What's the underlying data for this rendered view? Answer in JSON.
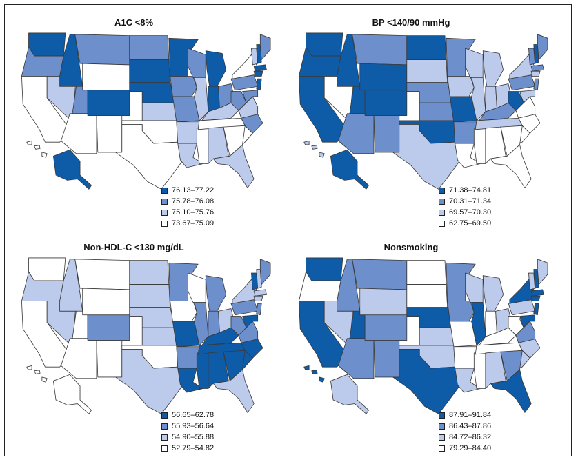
{
  "colors": {
    "c1": "#0e5ba8",
    "c2": "#6d8fcc",
    "c3": "#bccbeb",
    "c4": "#ffffff",
    "stroke": "#3a3a3a"
  },
  "panels": [
    {
      "title": "A1C <8%",
      "legend": [
        "76.13–77.22",
        "75.78–76.08",
        "75.10–75.76",
        "73.67–75.09"
      ],
      "regions": {
        "WA": 1,
        "OR": 2,
        "CA": 4,
        "NV": 3,
        "ID": 1,
        "MT": 2,
        "WY": 4,
        "UT": 2,
        "AZ": 4,
        "NM": 4,
        "CO": 1,
        "ND": 2,
        "SD": 1,
        "NE": 1,
        "KS": 3,
        "OK": 4,
        "TX": 4,
        "MN": 1,
        "IA": 2,
        "MO": 2,
        "AR": 3,
        "LA": 3,
        "WI": 2,
        "IL": 3,
        "MS": 4,
        "MI": 1,
        "IN": 1,
        "KY": 3,
        "TN": 4,
        "AL": 3,
        "OH": 2,
        "WV": 2,
        "VA": 3,
        "NC": 2,
        "SC": 4,
        "GA": 4,
        "FL": 3,
        "PA": 2,
        "NY": 4,
        "VT": 3,
        "NH": 1,
        "ME": 2,
        "MA": 1,
        "CT": 1,
        "NJ": 1,
        "MD": 2,
        "AK": 1,
        "HI": 4
      }
    },
    {
      "title": "BP <140/90 mmHg",
      "legend": [
        "71.38–74.81",
        "70.31–71.34",
        "69.57–70.30",
        "62.75–69.50"
      ],
      "regions": {
        "WA": 1,
        "OR": 1,
        "CA": 1,
        "NV": 4,
        "ID": 1,
        "MT": 2,
        "WY": 1,
        "UT": 1,
        "AZ": 2,
        "NM": 2,
        "CO": 1,
        "ND": 1,
        "SD": 3,
        "NE": 2,
        "KS": 2,
        "OK": 1,
        "TX": 3,
        "MN": 2,
        "IA": 3,
        "MO": 1,
        "AR": 2,
        "LA": 4,
        "WI": 3,
        "IL": 3,
        "MS": 4,
        "MI": 3,
        "IN": 3,
        "KY": 2,
        "TN": 3,
        "AL": 4,
        "OH": 3,
        "WV": 1,
        "VA": 4,
        "NC": 4,
        "SC": 4,
        "GA": 4,
        "FL": 4,
        "PA": 2,
        "NY": 3,
        "VT": 2,
        "NH": 1,
        "ME": 2,
        "MA": 2,
        "CT": 3,
        "NJ": 2,
        "MD": 3,
        "AK": 1,
        "HI": 3
      }
    },
    {
      "title": "Non-HDL-C <130 mg/dL",
      "legend": [
        "56.65–62.78",
        "55.93–56.64",
        "54.90–55.88",
        "52.79–54.82"
      ],
      "regions": {
        "WA": 4,
        "OR": 3,
        "CA": 4,
        "NV": 3,
        "ID": 3,
        "MT": 4,
        "WY": 4,
        "UT": 4,
        "AZ": 4,
        "NM": 4,
        "CO": 2,
        "ND": 3,
        "SD": 3,
        "NE": 3,
        "KS": 3,
        "OK": 4,
        "TX": 3,
        "MN": 2,
        "IA": 4,
        "MO": 1,
        "AR": 2,
        "LA": 1,
        "WI": 4,
        "IL": 2,
        "MS": 1,
        "MI": 2,
        "IN": 2,
        "KY": 1,
        "TN": 1,
        "AL": 1,
        "OH": 3,
        "WV": 2,
        "VA": 2,
        "NC": 1,
        "SC": 1,
        "GA": 1,
        "FL": 3,
        "PA": 2,
        "NY": 3,
        "VT": 1,
        "NH": 3,
        "ME": 2,
        "MA": 3,
        "CT": 3,
        "NJ": 2,
        "MD": 1,
        "AK": 4,
        "HI": 4
      }
    },
    {
      "title": "Nonsmoking",
      "legend": [
        "87.91–91.84",
        "86.43–87.86",
        "84.72–86.32",
        "79.29–84.40"
      ],
      "regions": {
        "WA": 1,
        "OR": 4,
        "CA": 1,
        "NV": 3,
        "ID": 2,
        "MT": 2,
        "WY": 3,
        "UT": 1,
        "AZ": 2,
        "NM": 2,
        "CO": 2,
        "ND": 4,
        "SD": 4,
        "NE": 1,
        "KS": 3,
        "OK": 3,
        "TX": 1,
        "MN": 2,
        "IA": 2,
        "MO": 4,
        "AR": 4,
        "LA": 3,
        "WI": 3,
        "IL": 1,
        "MS": 4,
        "MI": 3,
        "IN": 4,
        "KY": 4,
        "TN": 4,
        "AL": 3,
        "OH": 3,
        "WV": 4,
        "VA": 2,
        "NC": 3,
        "SC": 3,
        "GA": 2,
        "FL": 1,
        "PA": 3,
        "NY": 1,
        "VT": 3,
        "NH": 1,
        "ME": 3,
        "MA": 1,
        "CT": 1,
        "NJ": 1,
        "MD": 1,
        "AK": 3,
        "HI": 1
      }
    }
  ]
}
